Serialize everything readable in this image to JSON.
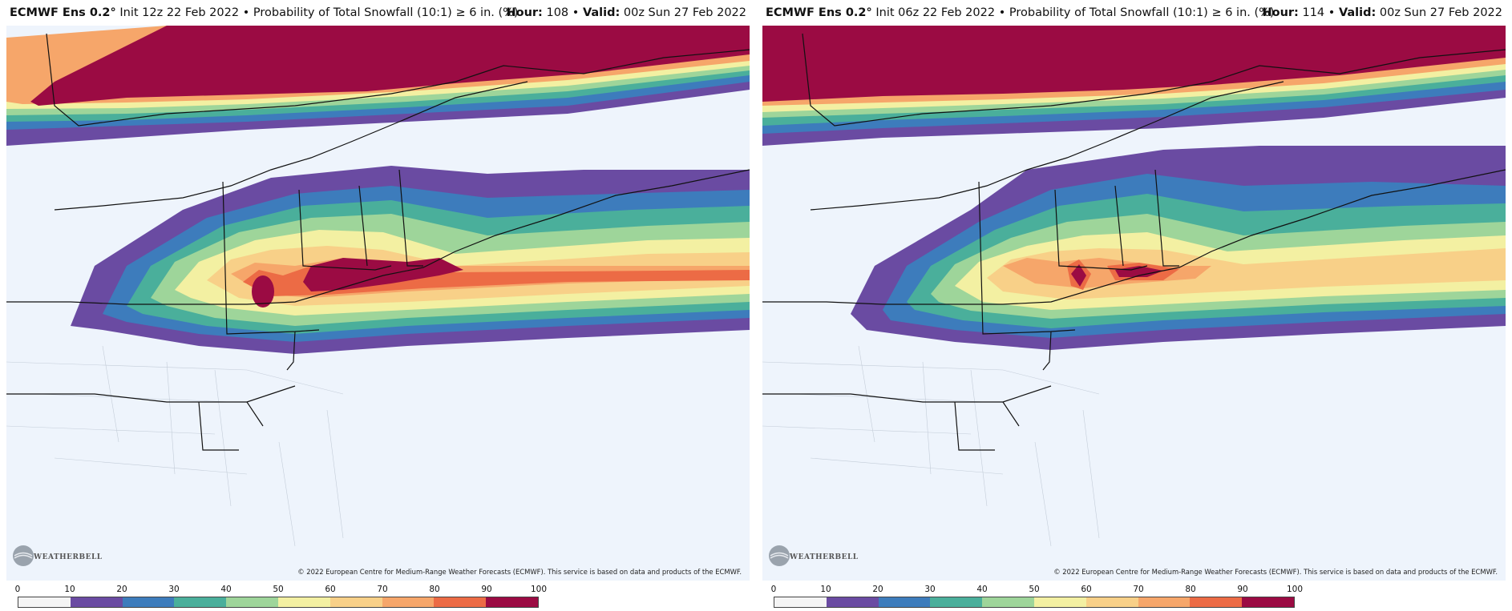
{
  "panels": [
    {
      "model_title": "ECMWF Ens 0.2",
      "degree": "°",
      "init_text": "Init 12z 22 Feb 2022",
      "sep": "•",
      "product": "Probability of Total Snowfall (10:1) ≥ 6 in. (%)",
      "hour_label": "Hour:",
      "hour_value": "108",
      "valid_label": "Valid:",
      "valid_value": "00z Sun 27 Feb 2022"
    },
    {
      "model_title": "ECMWF Ens 0.2",
      "degree": "°",
      "init_text": "Init 06z 22 Feb 2022",
      "sep": "•",
      "product": "Probability of Total Snowfall (10:1) ≥ 6 in. (%)",
      "hour_label": "Hour:",
      "hour_value": "114",
      "valid_label": "Valid:",
      "valid_value": "00z Sun 27 Feb 2022"
    }
  ],
  "credit": "© 2022 European Centre for Medium-Range Weather Forecasts (ECMWF). This service is based on data and products of the ECMWF.",
  "logo_text": "WEATHERBELL",
  "colorbar": {
    "ticks": [
      "0",
      "10",
      "20",
      "30",
      "40",
      "50",
      "60",
      "70",
      "80",
      "90",
      "100"
    ],
    "colors": [
      "#f4f4f4",
      "#6a4ba2",
      "#3d7cbc",
      "#4aaf9b",
      "#9ed59a",
      "#f3f0a2",
      "#f8d088",
      "#f6a66a",
      "#ec6b45",
      "#9b0b43"
    ]
  },
  "map_colors": {
    "background": "#eef4fc",
    "p10": "#6a4ba2",
    "p20": "#3d7cbc",
    "p30": "#4aaf9b",
    "p40": "#9ed59a",
    "p50": "#f3f0a2",
    "p60": "#f8d088",
    "p70": "#f6a66a",
    "p80": "#ec6b45",
    "p90": "#9b0b43",
    "border": "#111111",
    "county": "#b9c2cf"
  }
}
